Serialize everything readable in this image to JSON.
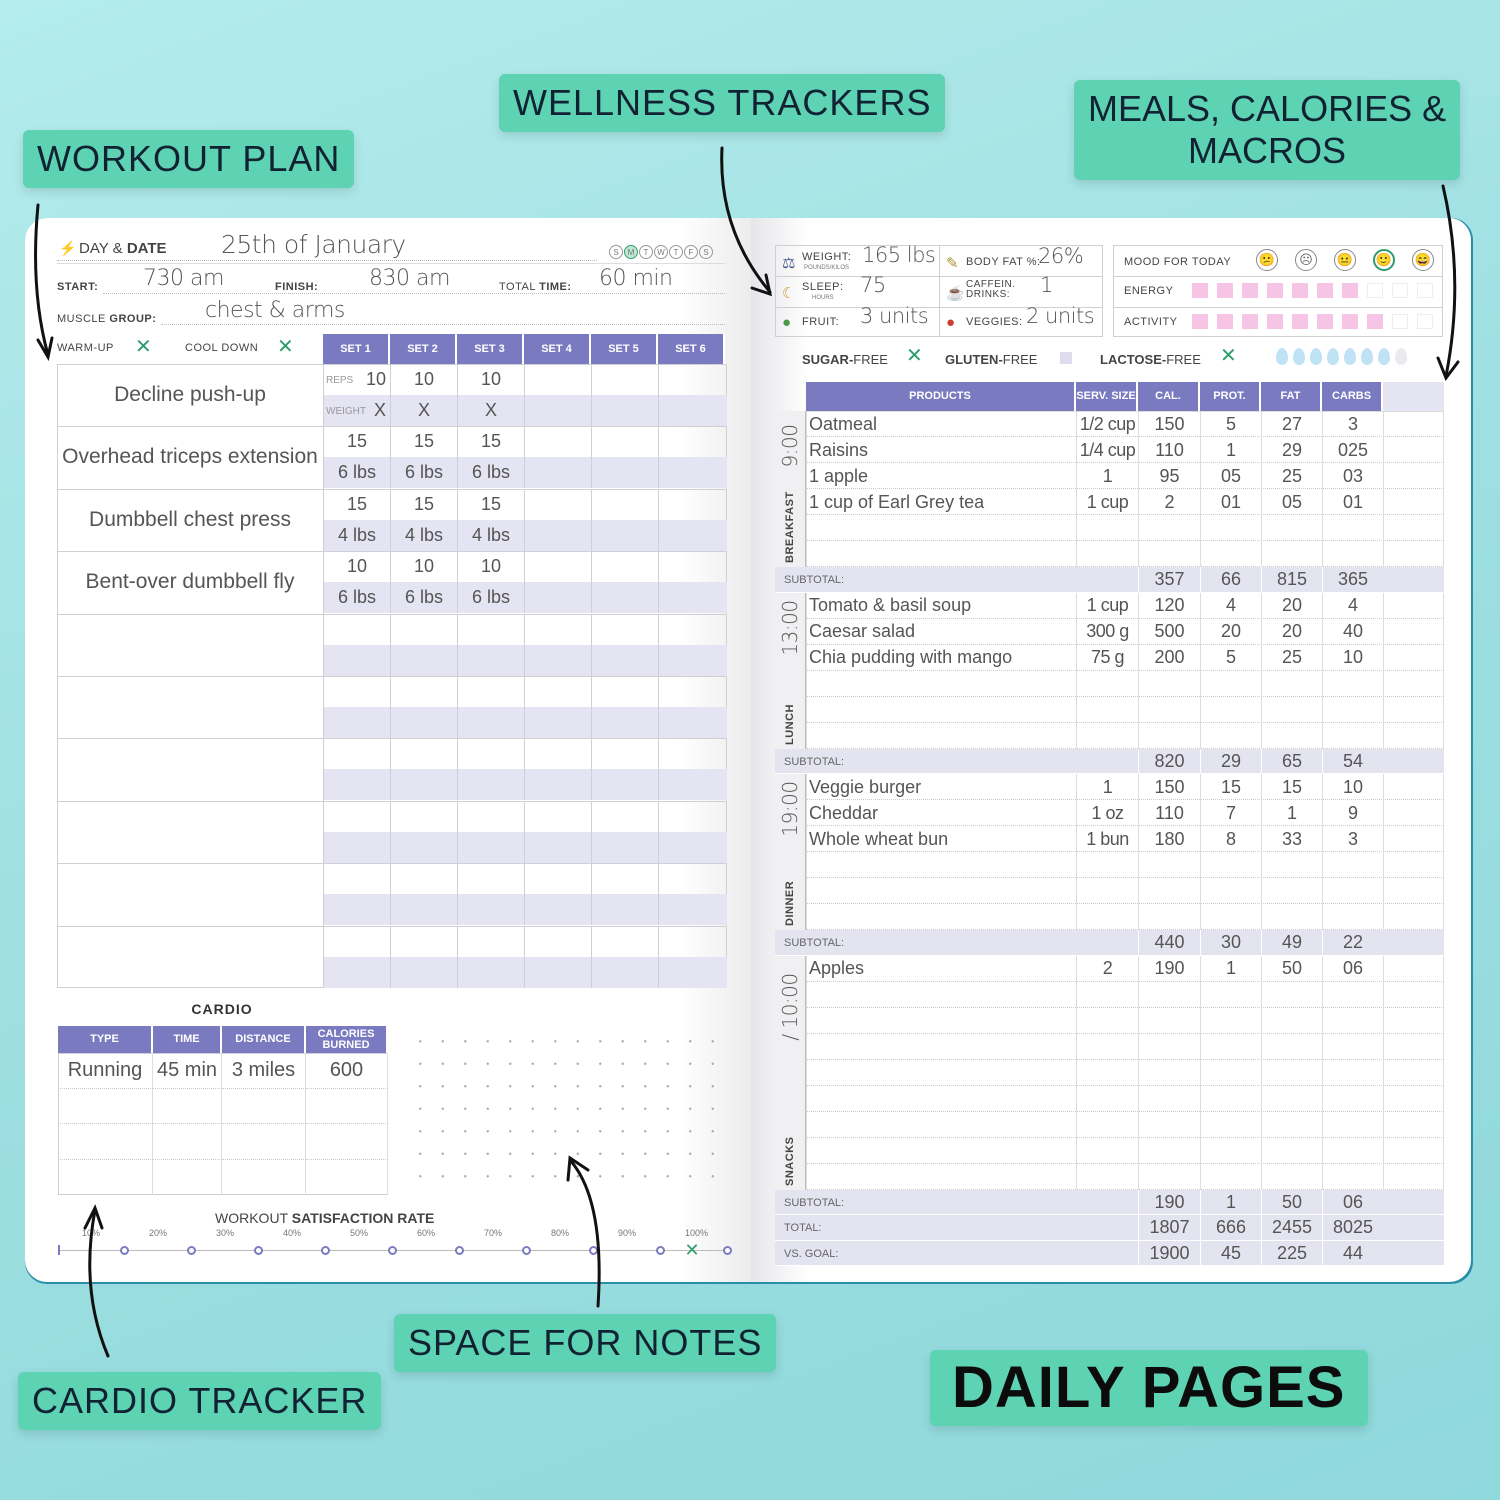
{
  "callouts": {
    "workout": "WORKOUT PLAN",
    "wellness": "WELLNESS TRACKERS",
    "meals": "MEALS, CALORIES &\nMACROS",
    "notes": "SPACE FOR NOTES",
    "cardio": "CARDIO TRACKER",
    "daily": "DAILY PAGES"
  },
  "workout": {
    "day_label": "DAY &",
    "day_label_bold": "DATE",
    "date": "25th of January",
    "weekdays": [
      "S",
      "M",
      "T",
      "W",
      "T",
      "F",
      "S"
    ],
    "selected_weekday": 1,
    "start_label": "START:",
    "start": "730 am",
    "finish_label": "FINISH:",
    "finish": "830 am",
    "total_label": "TOTAL",
    "total_label_bold": "TIME:",
    "total": "60 min",
    "muscle_label": "MUSCLE",
    "muscle_label_bold": "GROUP:",
    "muscle": "chest & arms",
    "warmup_label": "WARM-UP",
    "warmup_done": true,
    "cooldown_label": "COOL DOWN",
    "cooldown_done": true,
    "sets": [
      "SET 1",
      "SET 2",
      "SET 3",
      "SET 4",
      "SET 5",
      "SET 6"
    ],
    "reps_hint": "REPS",
    "weight_hint": "WEIGHT",
    "exercises": [
      {
        "name": "Decline push-up",
        "reps": [
          "10",
          "10",
          "10"
        ],
        "weight": [
          "X",
          "X",
          "X"
        ]
      },
      {
        "name": "Overhead triceps extension",
        "reps": [
          "15",
          "15",
          "15"
        ],
        "weight": [
          "6 lbs",
          "6 lbs",
          "6 lbs"
        ]
      },
      {
        "name": "Dumbbell chest press",
        "reps": [
          "15",
          "15",
          "15"
        ],
        "weight": [
          "4 lbs",
          "4 lbs",
          "4 lbs"
        ]
      },
      {
        "name": "Bent-over dumbbell fly",
        "reps": [
          "10",
          "10",
          "10"
        ],
        "weight": [
          "6 lbs",
          "6 lbs",
          "6 lbs"
        ]
      },
      {
        "name": "",
        "reps": [],
        "weight": []
      },
      {
        "name": "",
        "reps": [],
        "weight": []
      },
      {
        "name": "",
        "reps": [],
        "weight": []
      },
      {
        "name": "",
        "reps": [],
        "weight": []
      },
      {
        "name": "",
        "reps": [],
        "weight": []
      },
      {
        "name": "",
        "reps": [],
        "weight": []
      }
    ],
    "cardio": {
      "title": "CARDIO",
      "headers": [
        "TYPE",
        "TIME",
        "DISTANCE",
        "CALORIES BURNED"
      ],
      "rows": [
        [
          "Running",
          "45 min",
          "3 miles",
          "600"
        ],
        [
          "",
          "",
          "",
          ""
        ],
        [
          "",
          "",
          "",
          ""
        ],
        [
          "",
          "",
          "",
          ""
        ]
      ]
    },
    "satisfaction": {
      "label": "WORKOUT",
      "label_bold": "SATISFACTION RATE",
      "ticks": [
        "10%",
        "20%",
        "30%",
        "40%",
        "50%",
        "60%",
        "70%",
        "80%",
        "90%",
        "100%"
      ],
      "value_percent": 95
    }
  },
  "wellness": {
    "weight_label": "WEIGHT:",
    "weight_sub": "POUNDS/KILOS",
    "weight": "165 lbs",
    "bodyfat_label": "BODY FAT %:",
    "bodyfat": "26%",
    "sleep_label": "SLEEP:",
    "sleep_sub": "HOURS",
    "sleep": "75",
    "caffeine_label": "CAFFEIN. DRINKS:",
    "caffeine": "1",
    "fruit_label": "FRUIT:",
    "fruit": "3 units",
    "veggies_label": "VEGGIES:",
    "veggies": "2 units",
    "mood_label": "MOOD FOR TODAY",
    "mood_faces": [
      "😕",
      "☹",
      "😐",
      "🙂",
      "😄"
    ],
    "mood_selected": 3,
    "energy_label": "ENERGY",
    "energy_level": 7,
    "activity_label": "ACTIVITY",
    "activity_level": 8,
    "scale_max": 10,
    "sugar_label": "SUGAR-",
    "sugar_suffix": "FREE",
    "sugar_free": true,
    "gluten_label": "GLUTEN-",
    "gluten_suffix": "FREE",
    "gluten_free": false,
    "lactose_label": "LACTOSE-",
    "lactose_suffix": "FREE",
    "lactose_free": true,
    "water_glasses": 7,
    "water_max": 8,
    "colors": {
      "accent": "#7a7ac0",
      "pink": "#f6c4e4",
      "green": "#2f9e6e",
      "water": "#bfe2f5"
    }
  },
  "meals": {
    "headers": [
      "PRODUCTS",
      "SERV. SIZE",
      "CAL.",
      "PROT.",
      "FAT",
      "CARBS"
    ],
    "sections": [
      {
        "name": "BREAKFAST",
        "time": "9:00",
        "lines": 6,
        "items": [
          [
            "Oatmeal",
            "1/2 cup",
            "150",
            "5",
            "27",
            "3"
          ],
          [
            "Raisins",
            "1/4 cup",
            "110",
            "1",
            "29",
            "025"
          ],
          [
            "1 apple",
            "1",
            "95",
            "05",
            "25",
            "03"
          ],
          [
            "1 cup of Earl Grey tea",
            "1 cup",
            "2",
            "01",
            "05",
            "01"
          ]
        ],
        "subtotal_label": "SUBTOTAL:",
        "subtotal": [
          "357",
          "66",
          "815",
          "365"
        ]
      },
      {
        "name": "LUNCH",
        "time": "13:00",
        "lines": 6,
        "items": [
          [
            "Tomato & basil soup",
            "1 cup",
            "120",
            "4",
            "20",
            "4"
          ],
          [
            "Caesar salad",
            "300 g",
            "500",
            "20",
            "20",
            "40"
          ],
          [
            "Chia pudding with mango",
            "75 g",
            "200",
            "5",
            "25",
            "10"
          ]
        ],
        "subtotal_label": "SUBTOTAL:",
        "subtotal": [
          "820",
          "29",
          "65",
          "54"
        ]
      },
      {
        "name": "DINNER",
        "time": "19:00",
        "lines": 6,
        "items": [
          [
            "Veggie burger",
            "1",
            "150",
            "15",
            "15",
            "10"
          ],
          [
            "Cheddar",
            "1 oz",
            "110",
            "7",
            "1",
            "9"
          ],
          [
            "Whole wheat bun",
            "1 bun",
            "180",
            "8",
            "33",
            "3"
          ]
        ],
        "subtotal_label": "SUBTOTAL:",
        "subtotal": [
          "440",
          "30",
          "49",
          "22"
        ]
      },
      {
        "name": "SNACKS",
        "time": "/ 10:00",
        "lines": 9,
        "items": [
          [
            "Apples",
            "2",
            "190",
            "1",
            "50",
            "06"
          ]
        ],
        "subtotal_label": "SUBTOTAL:",
        "subtotal": [
          "190",
          "1",
          "50",
          "06"
        ]
      }
    ],
    "total_label": "TOTAL:",
    "total": [
      "1807",
      "666",
      "2455",
      "8025"
    ],
    "goal_label": "VS. GOAL:",
    "goal": [
      "1900",
      "45",
      "225",
      "44"
    ]
  }
}
